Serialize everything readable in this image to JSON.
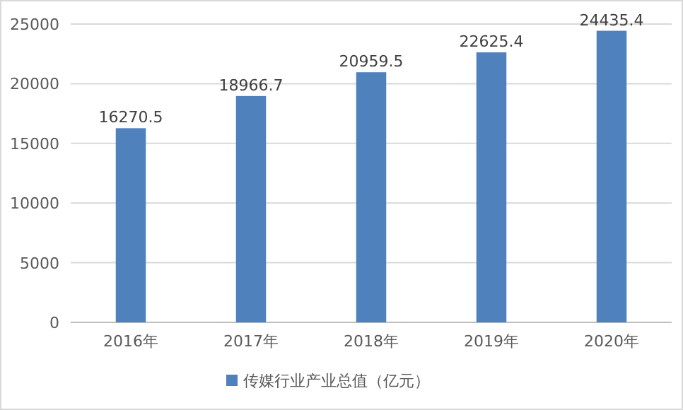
{
  "chart_data": {
    "type": "bar",
    "categories": [
      "2016年",
      "2017年",
      "2018年",
      "2019年",
      "2020年"
    ],
    "series": [
      {
        "name": "传媒行业产业总值（亿元）",
        "color": "#4f81bd",
        "values": [
          16270.5,
          18966.7,
          20959.5,
          22625.4,
          24435.4
        ]
      }
    ],
    "ylim": [
      0,
      25000
    ],
    "yticks": [
      0,
      5000,
      10000,
      15000,
      20000,
      25000
    ],
    "grid": "y",
    "legend": "bottom",
    "data_labels": true
  }
}
